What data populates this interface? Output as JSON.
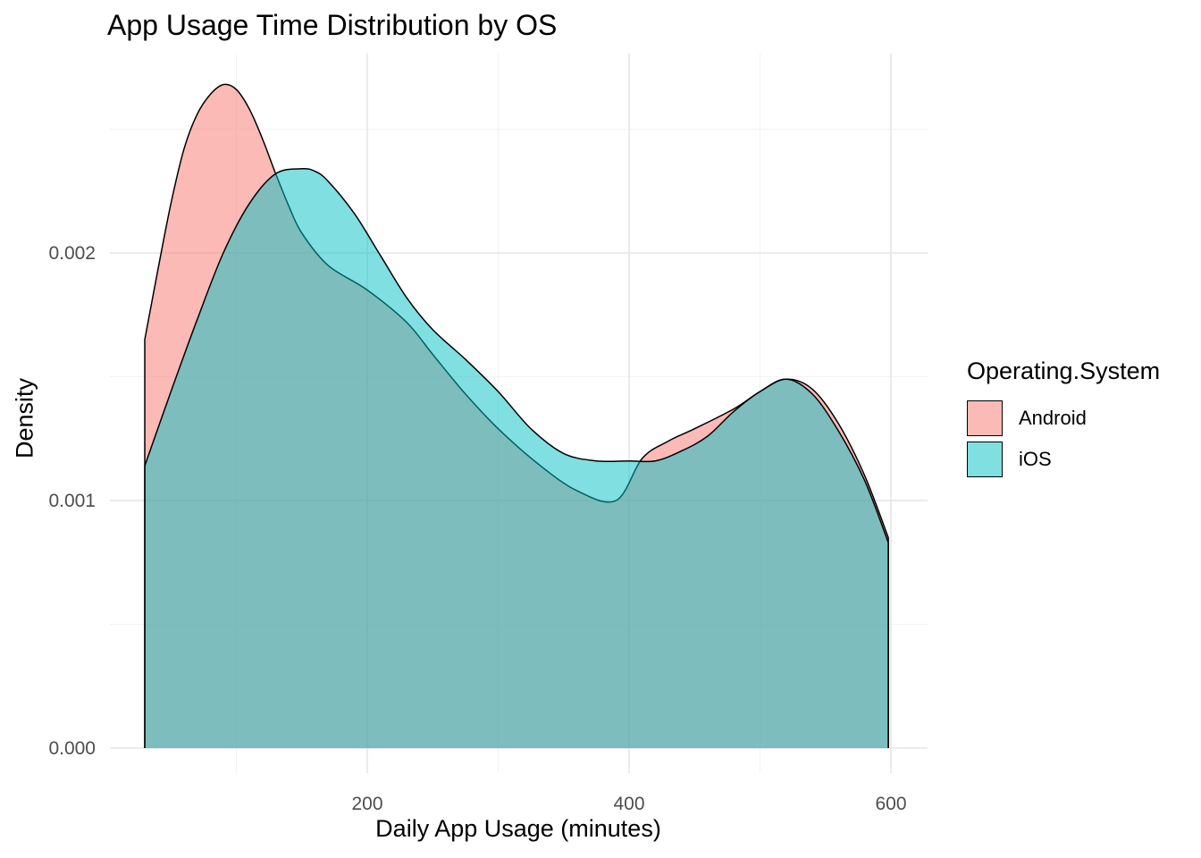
{
  "chart_data": {
    "type": "area",
    "title": "App Usage Time Distribution by OS",
    "xlabel": "Daily App Usage (minutes)",
    "ylabel": "Density",
    "xlim": [
      30,
      600
    ],
    "ylim": [
      0,
      0.0027
    ],
    "x_ticks": [
      200,
      400,
      600
    ],
    "y_ticks": [
      0.0,
      0.001,
      0.002
    ],
    "y_tick_labels": [
      "0.000",
      "0.001",
      "0.002"
    ],
    "grid": true,
    "legend": {
      "title": "Operating.System",
      "position": "right",
      "entries": [
        "Android",
        "iOS"
      ]
    },
    "series": [
      {
        "name": "Android",
        "color": "#F8766D",
        "x": [
          30,
          40,
          50,
          60,
          70,
          80,
          90,
          100,
          110,
          120,
          130,
          140,
          150,
          170,
          200,
          230,
          250,
          275,
          300,
          330,
          360,
          390,
          410,
          430,
          450,
          480,
          500,
          520,
          540,
          560,
          580,
          598
        ],
        "values": [
          0.00165,
          0.00193,
          0.0022,
          0.00242,
          0.00256,
          0.00264,
          0.00268,
          0.00266,
          0.00258,
          0.00246,
          0.00232,
          0.00219,
          0.00208,
          0.00195,
          0.00185,
          0.00172,
          0.00159,
          0.00143,
          0.00129,
          0.00115,
          0.00104,
          0.001,
          0.00117,
          0.00124,
          0.00129,
          0.00137,
          0.00144,
          0.00149,
          0.00145,
          0.00131,
          0.0011,
          0.00085
        ]
      },
      {
        "name": "iOS",
        "color": "#00BFC4",
        "x": [
          30,
          50,
          70,
          90,
          110,
          130,
          150,
          160,
          170,
          190,
          210,
          230,
          250,
          275,
          300,
          325,
          350,
          375,
          400,
          420,
          440,
          460,
          480,
          500,
          520,
          540,
          560,
          580,
          598
        ],
        "values": [
          0.00114,
          0.00144,
          0.00173,
          0.002,
          0.0022,
          0.00232,
          0.00234,
          0.00233,
          0.00229,
          0.00216,
          0.00199,
          0.00182,
          0.00169,
          0.00157,
          0.00144,
          0.00129,
          0.00119,
          0.00116,
          0.00116,
          0.00116,
          0.0012,
          0.00126,
          0.00136,
          0.00144,
          0.00149,
          0.00143,
          0.00128,
          0.00108,
          0.00083
        ]
      }
    ]
  }
}
